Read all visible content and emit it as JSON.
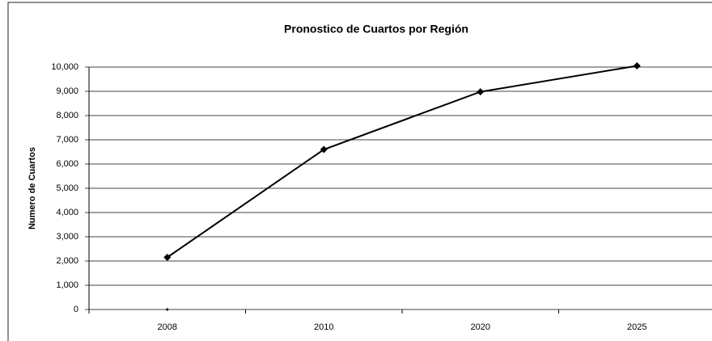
{
  "chart_data": {
    "type": "line",
    "title": "Pronostico de Cuartos por Región",
    "y_label": "Numero de Cuartos",
    "categories": [
      "2008",
      "2010",
      "2020",
      "2025"
    ],
    "series": [
      {
        "color": "#000000",
        "values": [
          2150,
          6600,
          8980,
          10050
        ]
      },
      {
        "color": "#000000",
        "values": [
          0,
          null,
          null,
          null
        ]
      }
    ],
    "ylim": [
      0,
      10000
    ],
    "yticks": [
      0,
      {
        "value": 1000,
        "label": "1,000"
      },
      {
        "value": 2000,
        "label": "2,000"
      },
      {
        "value": 3000,
        "label": "3,000"
      },
      {
        "value": 4000,
        "label": "4,000"
      },
      {
        "value": 5000,
        "label": "5,000"
      },
      {
        "value": 6000,
        "label": "6,000"
      },
      {
        "value": 7000,
        "label": "7,000"
      },
      {
        "value": 8000,
        "label": "8,000"
      },
      {
        "value": 9000,
        "label": "9,000"
      },
      {
        "value": 10000,
        "label": "10,000"
      }
    ],
    "grid": true
  }
}
